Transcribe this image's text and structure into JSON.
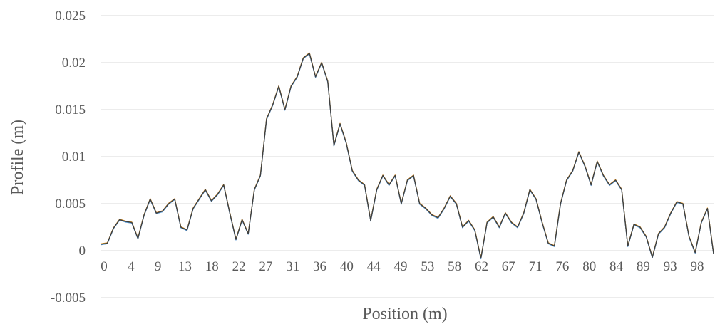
{
  "chart_data": {
    "type": "line",
    "xlabel": "Position (m)",
    "ylabel": "Profile (m)",
    "xlim": [
      0,
      100
    ],
    "ylim": [
      -0.005,
      0.025
    ],
    "grid": true,
    "legend": "none",
    "x_tick_labels": [
      "0",
      "4",
      "9",
      "13",
      "18",
      "22",
      "27",
      "31",
      "36",
      "40",
      "44",
      "49",
      "53",
      "58",
      "62",
      "67",
      "71",
      "76",
      "80",
      "84",
      "89",
      "93",
      "98"
    ],
    "y_tick_labels": [
      "0.025",
      "0.02",
      "0.015",
      "0.01",
      "0.005",
      "0",
      "-0.005"
    ],
    "y_tick_values": [
      0.025,
      0.02,
      0.015,
      0.01,
      0.005,
      0,
      -0.005
    ],
    "series_colors": [
      "#4472c4",
      "#ed7d31",
      "#a5a5a5",
      "#ffc000",
      "#5b9bd5",
      "#404040"
    ],
    "x": [
      0,
      1,
      2,
      3,
      4,
      5,
      6,
      7,
      8,
      9,
      10,
      11,
      12,
      13,
      14,
      15,
      16,
      17,
      18,
      19,
      20,
      21,
      22,
      23,
      24,
      25,
      26,
      27,
      28,
      29,
      30,
      31,
      32,
      33,
      34,
      35,
      36,
      37,
      38,
      39,
      40,
      41,
      42,
      43,
      44,
      45,
      46,
      47,
      48,
      49,
      50,
      51,
      52,
      53,
      54,
      55,
      56,
      57,
      58,
      59,
      60,
      61,
      62,
      63,
      64,
      65,
      66,
      67,
      68,
      69,
      70,
      71,
      72,
      73,
      74,
      75,
      76,
      77,
      78,
      79,
      80,
      81,
      82,
      83,
      84,
      85,
      86,
      87,
      88,
      89,
      90,
      91,
      92,
      93,
      94,
      95,
      96,
      97,
      98,
      99,
      100
    ],
    "y": [
      0.0007,
      0.0008,
      0.0024,
      0.0033,
      0.0031,
      0.003,
      0.0013,
      0.0038,
      0.0055,
      0.004,
      0.0042,
      0.005,
      0.0055,
      0.0025,
      0.0022,
      0.0045,
      0.0055,
      0.0065,
      0.0053,
      0.006,
      0.007,
      0.004,
      0.0012,
      0.0033,
      0.0018,
      0.0065,
      0.008,
      0.014,
      0.0155,
      0.0175,
      0.015,
      0.0175,
      0.0185,
      0.0205,
      0.021,
      0.0185,
      0.02,
      0.018,
      0.0112,
      0.0135,
      0.0115,
      0.0085,
      0.0075,
      0.007,
      0.0032,
      0.0065,
      0.008,
      0.007,
      0.008,
      0.005,
      0.0075,
      0.008,
      0.005,
      0.0045,
      0.0038,
      0.0035,
      0.0045,
      0.0058,
      0.005,
      0.0025,
      0.0032,
      0.0022,
      -0.0008,
      0.003,
      0.0036,
      0.0025,
      0.004,
      0.003,
      0.0025,
      0.004,
      0.0065,
      0.0055,
      0.003,
      0.0008,
      0.0005,
      0.005,
      0.0075,
      0.0085,
      0.0105,
      0.009,
      0.007,
      0.0095,
      0.008,
      0.007,
      0.0075,
      0.0065,
      0.0005,
      0.0028,
      0.0025,
      0.0015,
      -0.0007,
      0.0018,
      0.0025,
      0.004,
      0.0052,
      0.005,
      0.0015,
      -0.0002,
      0.003,
      0.0045,
      -0.0003
    ]
  }
}
